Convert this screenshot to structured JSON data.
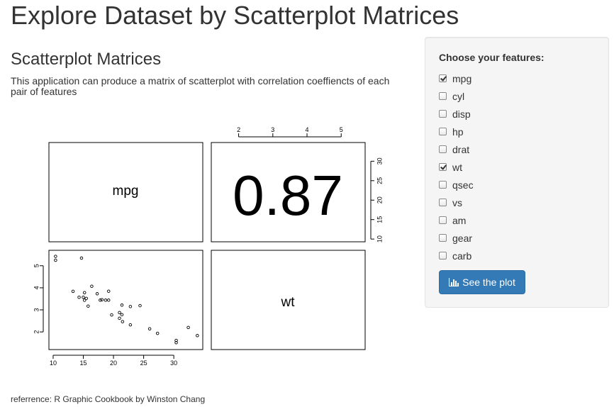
{
  "page": {
    "title": "Explore Dataset by Scatterplot Matrices",
    "section_title": "Scatterplot Matrices",
    "description": "This application can produce a matrix of scatterplot with correlation coeffiencts of each pair of features",
    "reference": "referrence: R Graphic Cookbook by Winston Chang"
  },
  "sidebar": {
    "label": "Choose your features:",
    "features": [
      {
        "label": "mpg",
        "checked": true
      },
      {
        "label": "cyl",
        "checked": false
      },
      {
        "label": "disp",
        "checked": false
      },
      {
        "label": "hp",
        "checked": false
      },
      {
        "label": "drat",
        "checked": false
      },
      {
        "label": "wt",
        "checked": true
      },
      {
        "label": "qsec",
        "checked": false
      },
      {
        "label": "vs",
        "checked": false
      },
      {
        "label": "am",
        "checked": false
      },
      {
        "label": "gear",
        "checked": false
      },
      {
        "label": "carb",
        "checked": false
      }
    ],
    "button_label": "See the plot",
    "button_icon": "bar-chart-icon",
    "button_color": "#337ab7"
  },
  "chart_data": {
    "type": "scatter",
    "variables": [
      "mpg",
      "wt"
    ],
    "correlation_label": "0.87",
    "top_axis_ticks": [
      "2",
      "3",
      "4",
      "5"
    ],
    "right_axis_ticks": [
      "10",
      "15",
      "20",
      "25",
      "30"
    ],
    "bottom_axis_ticks": [
      "10",
      "15",
      "20",
      "25",
      "30"
    ],
    "left_axis_ticks": [
      "2",
      "3",
      "4",
      "5"
    ],
    "xlim": [
      9.3,
      34.8
    ],
    "ylim": [
      1.2,
      5.7
    ],
    "points": [
      {
        "x": 21.0,
        "y": 2.62
      },
      {
        "x": 21.0,
        "y": 2.875
      },
      {
        "x": 22.8,
        "y": 2.32
      },
      {
        "x": 21.4,
        "y": 3.215
      },
      {
        "x": 18.7,
        "y": 3.44
      },
      {
        "x": 18.1,
        "y": 3.46
      },
      {
        "x": 14.3,
        "y": 3.57
      },
      {
        "x": 24.4,
        "y": 3.19
      },
      {
        "x": 22.8,
        "y": 3.15
      },
      {
        "x": 19.2,
        "y": 3.44
      },
      {
        "x": 17.8,
        "y": 3.44
      },
      {
        "x": 16.4,
        "y": 4.07
      },
      {
        "x": 17.3,
        "y": 3.73
      },
      {
        "x": 15.2,
        "y": 3.78
      },
      {
        "x": 10.4,
        "y": 5.25
      },
      {
        "x": 10.4,
        "y": 5.424
      },
      {
        "x": 14.7,
        "y": 5.345
      },
      {
        "x": 32.4,
        "y": 2.2
      },
      {
        "x": 30.4,
        "y": 1.615
      },
      {
        "x": 33.9,
        "y": 1.835
      },
      {
        "x": 21.5,
        "y": 2.465
      },
      {
        "x": 15.5,
        "y": 3.52
      },
      {
        "x": 15.2,
        "y": 3.435
      },
      {
        "x": 13.3,
        "y": 3.84
      },
      {
        "x": 19.2,
        "y": 3.845
      },
      {
        "x": 27.3,
        "y": 1.935
      },
      {
        "x": 26.0,
        "y": 2.14
      },
      {
        "x": 30.4,
        "y": 1.513
      },
      {
        "x": 15.8,
        "y": 3.17
      },
      {
        "x": 19.7,
        "y": 2.77
      },
      {
        "x": 15.0,
        "y": 3.57
      },
      {
        "x": 21.4,
        "y": 2.78
      }
    ]
  }
}
